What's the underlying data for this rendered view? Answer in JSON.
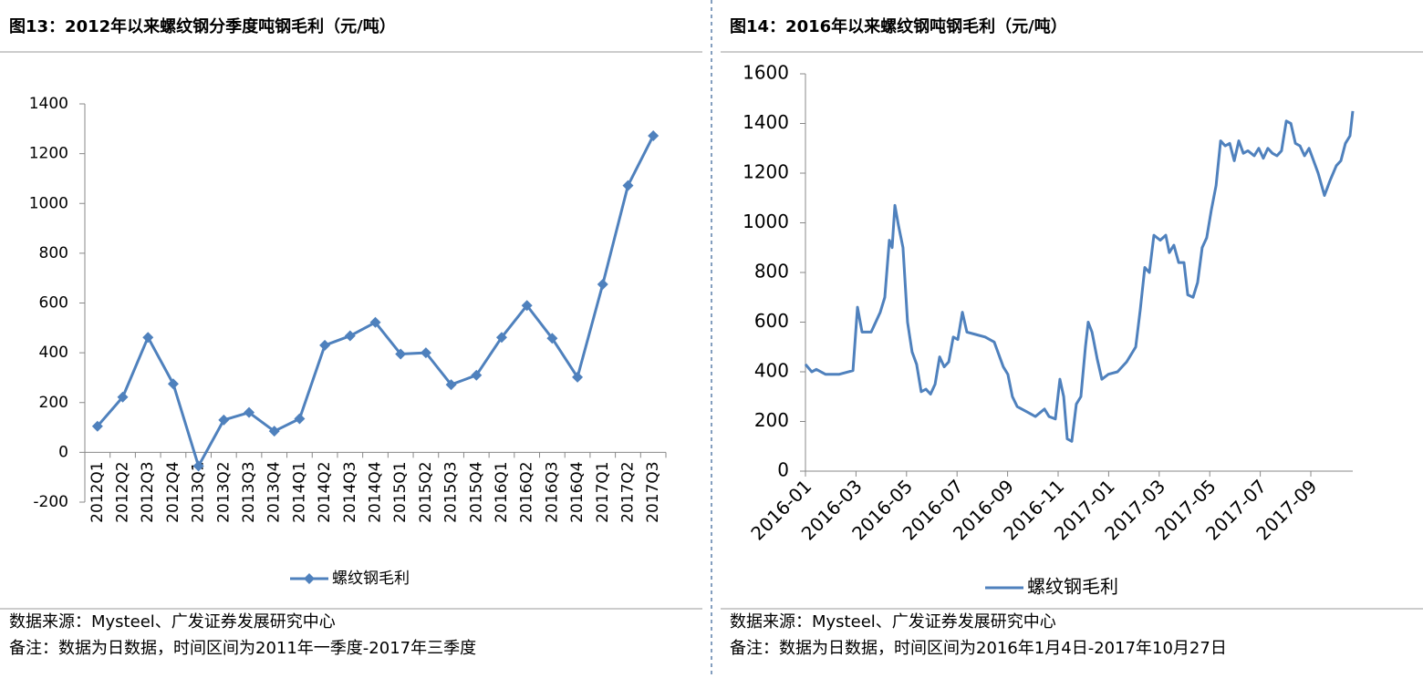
{
  "chart_data": [
    {
      "type": "line",
      "title": "图13：2012年以来螺纹钢分季度吨钢毛利（元/吨）",
      "source": "数据来源：Mysteel、广发证券发展研究中心",
      "note": "备注：数据为日数据，时间区间为2011年一季度-2017年三季度",
      "categories": [
        "2012Q1",
        "2012Q2",
        "2012Q3",
        "2012Q4",
        "2013Q1",
        "2013Q2",
        "2013Q3",
        "2013Q4",
        "2014Q1",
        "2014Q2",
        "2014Q3",
        "2014Q4",
        "2015Q1",
        "2015Q2",
        "2015Q3",
        "2015Q4",
        "2016Q1",
        "2016Q2",
        "2016Q3",
        "2016Q4",
        "2017Q1",
        "2017Q2",
        "2017Q3"
      ],
      "series": [
        {
          "name": "螺纹钢毛利",
          "color": "#4f81bd",
          "marker": "diamond",
          "values": [
            105,
            222,
            462,
            275,
            -55,
            130,
            160,
            85,
            135,
            430,
            468,
            522,
            395,
            400,
            272,
            310,
            462,
            590,
            458,
            302,
            675,
            1072,
            1272
          ]
        }
      ],
      "ylim": [
        -200,
        1400
      ],
      "yticks": [
        -200,
        0,
        200,
        400,
        600,
        800,
        1000,
        1200,
        1400
      ],
      "grid": false
    },
    {
      "type": "line",
      "title": "图14：2016年以来螺纹钢吨钢毛利（元/吨）",
      "source": "数据来源：Mysteel、广发证券发展研究中心",
      "note": "备注：数据为日数据，时间区间为2016年1月4日-2017年10月27日",
      "x": [
        0,
        0.25,
        0.43,
        0.79,
        1.34,
        1.88,
        2.06,
        2.24,
        2.6,
        2.96,
        3.14,
        3.32,
        3.43,
        3.54,
        3.68,
        3.86,
        4.04,
        4.22,
        4.4,
        4.58,
        4.77,
        4.95,
        5.13,
        5.31,
        5.49,
        5.67,
        5.85,
        6.03,
        6.21,
        6.39,
        6.75,
        7.11,
        7.47,
        7.83,
        8.01,
        8.19,
        8.38,
        8.74,
        9.1,
        9.46,
        9.64,
        9.89,
        10.07,
        10.22,
        10.36,
        10.54,
        10.72,
        10.9,
        11.08,
        11.19,
        11.34,
        11.55,
        11.73,
        11.99,
        12.35,
        12.71,
        13.07,
        13.25,
        13.43,
        13.61,
        13.79,
        14.04,
        14.26,
        14.4,
        14.58,
        14.77,
        14.98,
        15.13,
        15.34,
        15.52,
        15.7,
        15.88,
        16.06,
        16.25,
        16.43,
        16.61,
        16.79,
        16.97,
        17.15,
        17.33,
        17.51,
        17.76,
        17.94,
        18.12,
        18.3,
        18.48,
        18.66,
        18.84,
        19.03,
        19.21,
        19.39,
        19.57,
        19.75,
        19.93,
        20.11,
        20.29,
        20.54,
        20.76,
        21.01,
        21.19,
        21.37,
        21.55,
        21.66
      ],
      "series": [
        {
          "name": "螺纹钢毛利",
          "color": "#4f81bd",
          "values": [
            430,
            400,
            410,
            390,
            390,
            405,
            660,
            560,
            560,
            640,
            700,
            930,
            900,
            1070,
            990,
            900,
            600,
            480,
            430,
            320,
            330,
            310,
            350,
            460,
            420,
            440,
            540,
            530,
            640,
            560,
            550,
            540,
            520,
            420,
            390,
            300,
            260,
            240,
            220,
            250,
            220,
            210,
            370,
            300,
            130,
            120,
            270,
            300,
            500,
            600,
            560,
            450,
            370,
            390,
            400,
            440,
            500,
            650,
            820,
            800,
            950,
            930,
            950,
            880,
            910,
            840,
            840,
            710,
            700,
            760,
            900,
            940,
            1050,
            1150,
            1330,
            1310,
            1320,
            1250,
            1330,
            1280,
            1290,
            1270,
            1300,
            1260,
            1300,
            1280,
            1270,
            1290,
            1410,
            1400,
            1320,
            1310,
            1270,
            1300,
            1250,
            1200,
            1110,
            1170,
            1230,
            1250,
            1320,
            1350,
            1450
          ]
        }
      ],
      "xlim": [
        0,
        21.66
      ],
      "xticks": [
        {
          "value": 0,
          "label": "2016-01"
        },
        {
          "value": 2,
          "label": "2016-03"
        },
        {
          "value": 4,
          "label": "2016-05"
        },
        {
          "value": 6,
          "label": "2016-07"
        },
        {
          "value": 8,
          "label": "2016-09"
        },
        {
          "value": 10,
          "label": "2016-11"
        },
        {
          "value": 12,
          "label": "2017-01"
        },
        {
          "value": 14,
          "label": "2017-03"
        },
        {
          "value": 16,
          "label": "2017-05"
        },
        {
          "value": 18,
          "label": "2017-07"
        },
        {
          "value": 20,
          "label": "2017-09"
        }
      ],
      "ylim": [
        0,
        1600
      ],
      "yticks": [
        0,
        200,
        400,
        600,
        800,
        1000,
        1200,
        1400,
        1600
      ],
      "grid": false
    }
  ]
}
